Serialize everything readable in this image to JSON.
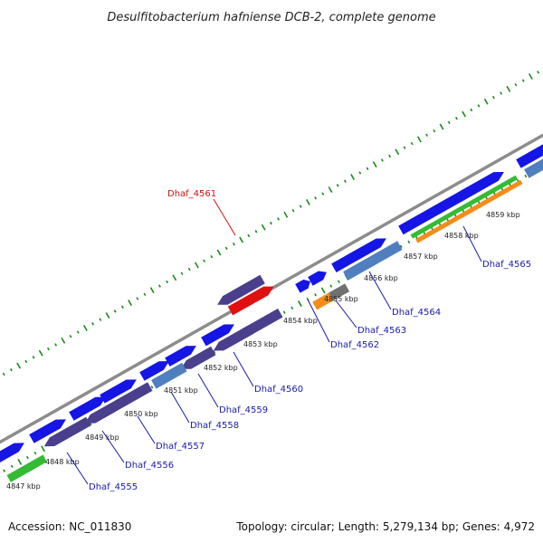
{
  "title": "Desulfitobacterium hafniense DCB-2, complete genome",
  "accession": "Accession: NC_011830",
  "summary": "Topology: circular; Length: 5,279,134 bp; Genes: 4,972",
  "colors": {
    "backbone": "#8c8c8c",
    "tick": "#1a8a1a",
    "cds_blue": "#1515e6",
    "cds_purple": "#4a3f8c",
    "cds_steel": "#4f7fbf",
    "gene_green": "#33bb33",
    "gene_orange": "#f58c1a",
    "gene_gray": "#707070",
    "highlight": "#e01010",
    "label_blue": "#1a1aaa",
    "label_red": "#d01010"
  },
  "kbp_labels": [
    "4847 kbp",
    "4848 kbp",
    "4849 kbp",
    "4850 kbp",
    "4851 kbp",
    "4852 kbp",
    "4853 kbp",
    "4854 kbp",
    "4855 kbp",
    "4856 kbp",
    "4857 kbp",
    "4858 kbp",
    "4859 kbp"
  ],
  "gene_labels": [
    {
      "name": "Dhaf_4555",
      "highlight": false
    },
    {
      "name": "Dhaf_4556",
      "highlight": false
    },
    {
      "name": "Dhaf_4557",
      "highlight": false
    },
    {
      "name": "Dhaf_4558",
      "highlight": false
    },
    {
      "name": "Dhaf_4559",
      "highlight": false
    },
    {
      "name": "Dhaf_4560",
      "highlight": false
    },
    {
      "name": "Dhaf_4561",
      "highlight": true
    },
    {
      "name": "Dhaf_4562",
      "highlight": false
    },
    {
      "name": "Dhaf_4563",
      "highlight": false
    },
    {
      "name": "Dhaf_4564",
      "highlight": false
    },
    {
      "name": "Dhaf_4565",
      "highlight": false
    }
  ]
}
